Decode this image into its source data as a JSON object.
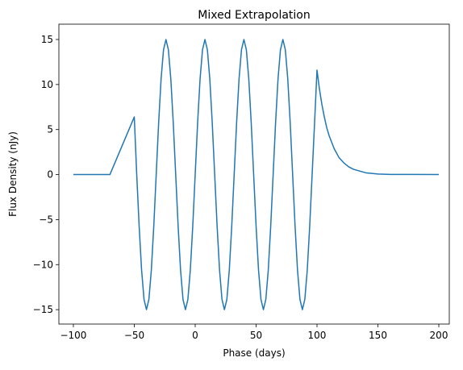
{
  "chart_data": {
    "type": "line",
    "title": "Mixed Extrapolation",
    "xlabel": "Phase (days)",
    "ylabel": "Flux Density (nJy)",
    "color": "#1f77b4",
    "x": [
      -100,
      -70,
      -50,
      -48,
      -46,
      -44,
      -42,
      -40,
      -38,
      -36,
      -34,
      -32,
      -30,
      -28,
      -26,
      -24,
      -22,
      -20,
      -18,
      -16,
      -14,
      -12,
      -10,
      -8,
      -6,
      -4,
      -2,
      0,
      2,
      4,
      6,
      8,
      10,
      12,
      14,
      16,
      18,
      20,
      22,
      24,
      26,
      28,
      30,
      32,
      34,
      36,
      38,
      40,
      42,
      44,
      46,
      48,
      50,
      52,
      54,
      56,
      58,
      60,
      62,
      64,
      66,
      68,
      70,
      72,
      74,
      76,
      78,
      80,
      82,
      84,
      86,
      88,
      90,
      92,
      94,
      96,
      98,
      100,
      102,
      104,
      106,
      108,
      110,
      114,
      118,
      122,
      126,
      130,
      140,
      150,
      160,
      200
    ],
    "values": [
      0,
      0,
      6.4,
      0,
      -5.74,
      -10.61,
      -13.86,
      -15,
      -13.86,
      -10.61,
      -5.74,
      0,
      5.74,
      10.61,
      13.86,
      15,
      13.86,
      10.61,
      5.74,
      0,
      -5.74,
      -10.61,
      -13.86,
      -15,
      -13.86,
      -10.61,
      -5.74,
      0,
      5.74,
      10.61,
      13.86,
      15,
      13.86,
      10.61,
      5.74,
      0,
      -5.74,
      -10.61,
      -13.86,
      -15,
      -13.86,
      -10.61,
      -5.74,
      0,
      5.74,
      10.61,
      13.86,
      15,
      13.86,
      10.61,
      5.74,
      0,
      -5.74,
      -10.61,
      -13.86,
      -15,
      -13.86,
      -10.61,
      -5.74,
      0,
      5.74,
      10.61,
      13.86,
      15,
      13.86,
      10.61,
      5.74,
      0,
      -5.74,
      -10.61,
      -13.86,
      -15,
      -13.86,
      -10.61,
      -5.74,
      0,
      5.74,
      11.6,
      9.5,
      7.8,
      6.4,
      5.2,
      4.3,
      2.9,
      1.9,
      1.3,
      0.86,
      0.58,
      0.2,
      0.06,
      0.02,
      0
    ],
    "xlim": [
      -111.9,
      208.6
    ],
    "ylim": [
      -16.6,
      16.7
    ],
    "xticks": [
      {
        "value": -100,
        "label": "−100"
      },
      {
        "value": -50,
        "label": "−50"
      },
      0,
      50,
      100,
      150,
      200
    ],
    "yticks": [
      {
        "value": -15,
        "label": "−15"
      },
      {
        "value": -10,
        "label": "−10"
      },
      {
        "value": -5,
        "label": "−5"
      },
      0,
      5,
      10,
      15
    ]
  }
}
